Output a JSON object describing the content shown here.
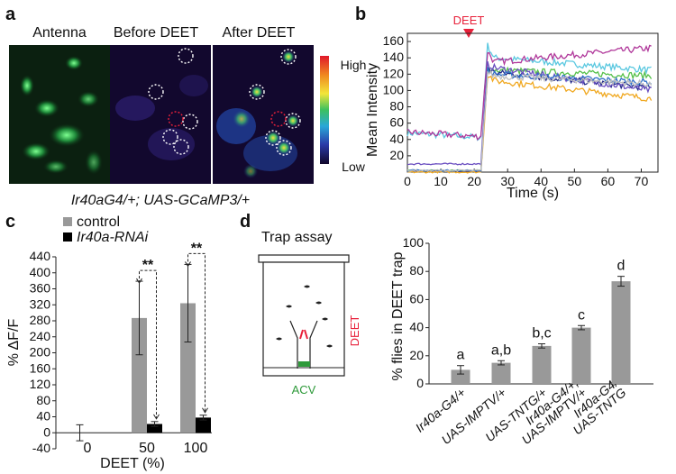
{
  "figure": {
    "panel_a": {
      "label": "a",
      "titles": [
        "Antenna",
        "Before DEET",
        "After DEET"
      ],
      "colorbar_high": "High",
      "colorbar_low": "Low",
      "genotype": "Ir40aG4/+; UAS-GCaMP3/+"
    },
    "panel_b": {
      "label": "b",
      "stimulus": "DEET"
    },
    "panel_c": {
      "label": "c",
      "significance": "**"
    },
    "panel_d": {
      "label": "d",
      "trap_title": "Trap assay",
      "trap_deet": "DEET",
      "trap_acv": "ACV"
    },
    "colors": {
      "gray_bar": "#999999",
      "black_bar": "#000000",
      "deet_red": "#e8203a",
      "acv_green": "#2e9a3a"
    }
  },
  "chart_data": [
    {
      "id": "b",
      "type": "line",
      "title": "",
      "xlabel": "Time (s)",
      "ylabel": "Mean Intensity",
      "xlim": [
        0,
        75
      ],
      "ylim": [
        0,
        170
      ],
      "xticks": [
        0,
        10,
        20,
        30,
        40,
        50,
        60,
        70
      ],
      "yticks": [
        20,
        40,
        60,
        80,
        100,
        120,
        140,
        160
      ],
      "annotation": "DEET",
      "annotation_x": 22,
      "series": [
        {
          "name": "trace-cyan",
          "color": "#5ac8e0",
          "pre": 43,
          "peak": 155,
          "post_start": 140,
          "post_end": 125
        },
        {
          "name": "trace-magenta",
          "color": "#b0379a",
          "pre": 44,
          "peak": 148,
          "post_start": 135,
          "post_end": 152
        },
        {
          "name": "trace-green",
          "color": "#55c04a",
          "pre": 2,
          "peak": 128,
          "post_start": 125,
          "post_end": 118
        },
        {
          "name": "trace-navy",
          "color": "#232a8a",
          "pre": 1,
          "peak": 128,
          "post_start": 122,
          "post_end": 103
        },
        {
          "name": "trace-violet",
          "color": "#6a4ec0",
          "pre": 10,
          "peak": 132,
          "post_start": 128,
          "post_end": 100
        },
        {
          "name": "trace-orange",
          "color": "#f0a820",
          "pre": 0,
          "peak": 120,
          "post_start": 112,
          "post_end": 90
        },
        {
          "name": "trace-blue",
          "color": "#3070c8",
          "pre": 2,
          "peak": 125,
          "post_start": 120,
          "post_end": 110
        },
        {
          "name": "trace-gray",
          "color": "#bfbfbf",
          "pre": 2,
          "peak": 122,
          "post_start": 118,
          "post_end": 108
        }
      ]
    },
    {
      "id": "c",
      "type": "bar",
      "title": "",
      "xlabel": "DEET (%)",
      "ylabel": "% ΔF/F",
      "ylim": [
        -40,
        440
      ],
      "yticks": [
        -40,
        0,
        40,
        80,
        120,
        160,
        200,
        240,
        280,
        320,
        360,
        400,
        440
      ],
      "categories": [
        "0",
        "50",
        "100"
      ],
      "series": [
        {
          "name": "control",
          "color": "#999999",
          "values": [
            0,
            287,
            324
          ],
          "errors": [
            20,
            92,
            97
          ]
        },
        {
          "name": "Ir40a-RNAi",
          "color": "#000000",
          "values": [
            0,
            22,
            38
          ],
          "errors": [
            0,
            6,
            6
          ]
        }
      ],
      "legend": [
        "control",
        "Ir40a-RNAi"
      ],
      "legend_position": "top"
    },
    {
      "id": "d",
      "type": "bar",
      "title": "",
      "xlabel": "",
      "ylabel": "% flies in DEET trap",
      "ylim": [
        0,
        100
      ],
      "yticks": [
        0,
        20,
        40,
        60,
        80,
        100
      ],
      "categories": [
        [
          "Ir40a-G4/+"
        ],
        [
          "UAS-IMPTV/+"
        ],
        [
          "UAS-TNTG/+"
        ],
        [
          "Ir40a-G4/+;",
          "UAS-IMPTV/+"
        ],
        [
          "Ir40a-G4/",
          "UAS-TNTG"
        ]
      ],
      "values": [
        10,
        15,
        27,
        40,
        73
      ],
      "errors": [
        3,
        1.5,
        1.5,
        1.5,
        3.5
      ],
      "group_letters": [
        "a",
        "a,b",
        "b,c",
        "c",
        "d"
      ]
    }
  ]
}
